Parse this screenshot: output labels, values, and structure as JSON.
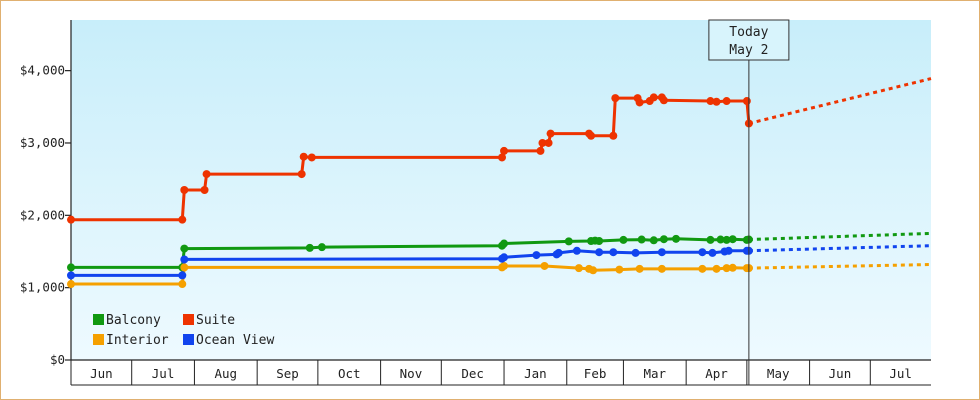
{
  "chart_data": {
    "type": "line",
    "title": "",
    "xlabel": "",
    "ylabel": "",
    "ylim": [
      0,
      4700
    ],
    "xlim": [
      "2025-06-01",
      "2026-07-31"
    ],
    "today_date": "2026-05-02",
    "today_label": [
      "Today",
      "May 2"
    ],
    "y_ticks": [
      {
        "value": 0,
        "label": "$0"
      },
      {
        "value": 1000,
        "label": "$1,000"
      },
      {
        "value": 2000,
        "label": "$2,000"
      },
      {
        "value": 3000,
        "label": "$3,000"
      },
      {
        "value": 4000,
        "label": "$4,000"
      }
    ],
    "months": [
      {
        "label": "Jun",
        "start": "2025-06-01",
        "end": "2025-07-01"
      },
      {
        "label": "Jul",
        "start": "2025-07-01",
        "end": "2025-08-01"
      },
      {
        "label": "Aug",
        "start": "2025-08-01",
        "end": "2025-09-01"
      },
      {
        "label": "Sep",
        "start": "2025-09-01",
        "end": "2025-10-01"
      },
      {
        "label": "Oct",
        "start": "2025-10-01",
        "end": "2025-11-01"
      },
      {
        "label": "Nov",
        "start": "2025-11-01",
        "end": "2025-12-01"
      },
      {
        "label": "Dec",
        "start": "2025-12-01",
        "end": "2026-01-01"
      },
      {
        "label": "Jan",
        "start": "2026-01-01",
        "end": "2026-02-01"
      },
      {
        "label": "Feb",
        "start": "2026-02-01",
        "end": "2026-03-01"
      },
      {
        "label": "Mar",
        "start": "2026-03-01",
        "end": "2026-04-01"
      },
      {
        "label": "Apr",
        "start": "2026-04-01",
        "end": "2026-05-01"
      },
      {
        "label": "May",
        "start": "2026-05-01",
        "end": "2026-06-01"
      },
      {
        "label": "Jun",
        "start": "2026-06-01",
        "end": "2026-07-01"
      },
      {
        "label": "Jul",
        "start": "2026-07-01",
        "end": "2026-07-31"
      }
    ],
    "legend_position": "bottom-left",
    "series": [
      {
        "name": "Balcony",
        "color": "#119911",
        "points": [
          [
            "2025-06-01",
            1280
          ],
          [
            "2025-07-26",
            1280
          ],
          [
            "2025-07-27",
            1540
          ],
          [
            "2025-09-27",
            1550
          ],
          [
            "2025-10-03",
            1560
          ],
          [
            "2025-12-31",
            1580
          ],
          [
            "2026-01-01",
            1610
          ],
          [
            "2026-02-02",
            1640
          ],
          [
            "2026-02-13",
            1645
          ],
          [
            "2026-02-15",
            1650
          ],
          [
            "2026-02-17",
            1645
          ],
          [
            "2026-03-01",
            1660
          ],
          [
            "2026-03-10",
            1665
          ],
          [
            "2026-03-16",
            1655
          ],
          [
            "2026-03-21",
            1670
          ],
          [
            "2026-03-27",
            1675
          ],
          [
            "2026-04-13",
            1660
          ],
          [
            "2026-04-18",
            1665
          ],
          [
            "2026-04-21",
            1660
          ],
          [
            "2026-04-24",
            1670
          ],
          [
            "2026-05-01",
            1660
          ],
          [
            "2026-05-02",
            1665
          ]
        ],
        "forecast": [
          [
            "2026-05-02",
            1665
          ],
          [
            "2026-07-31",
            1750
          ]
        ]
      },
      {
        "name": "Suite",
        "color": "#ee3300",
        "points": [
          [
            "2025-06-01",
            1940
          ],
          [
            "2025-07-26",
            1940
          ],
          [
            "2025-07-27",
            2350
          ],
          [
            "2025-08-06",
            2350
          ],
          [
            "2025-08-07",
            2570
          ],
          [
            "2025-09-23",
            2570
          ],
          [
            "2025-09-24",
            2810
          ],
          [
            "2025-09-28",
            2800
          ],
          [
            "2025-12-31",
            2800
          ],
          [
            "2026-01-01",
            2890
          ],
          [
            "2026-01-19",
            2890
          ],
          [
            "2026-01-20",
            3000
          ],
          [
            "2026-01-23",
            3000
          ],
          [
            "2026-01-24",
            3130
          ],
          [
            "2026-02-12",
            3130
          ],
          [
            "2026-02-13",
            3100
          ],
          [
            "2026-02-24",
            3100
          ],
          [
            "2026-02-25",
            3620
          ],
          [
            "2026-03-08",
            3620
          ],
          [
            "2026-03-09",
            3560
          ],
          [
            "2026-03-14",
            3580
          ],
          [
            "2026-03-16",
            3630
          ],
          [
            "2026-03-20",
            3630
          ],
          [
            "2026-03-21",
            3590
          ],
          [
            "2026-04-13",
            3580
          ],
          [
            "2026-04-16",
            3570
          ],
          [
            "2026-04-21",
            3580
          ],
          [
            "2026-05-01",
            3580
          ],
          [
            "2026-05-02",
            3270
          ]
        ],
        "forecast": [
          [
            "2026-05-02",
            3270
          ],
          [
            "2026-07-31",
            3890
          ]
        ]
      },
      {
        "name": "Interior",
        "color": "#f5a000",
        "points": [
          [
            "2025-06-01",
            1050
          ],
          [
            "2025-07-26",
            1050
          ],
          [
            "2025-07-27",
            1280
          ],
          [
            "2025-12-31",
            1280
          ],
          [
            "2026-01-01",
            1300
          ],
          [
            "2026-01-21",
            1300
          ],
          [
            "2026-02-07",
            1270
          ],
          [
            "2026-02-12",
            1260
          ],
          [
            "2026-02-14",
            1240
          ],
          [
            "2026-02-27",
            1250
          ],
          [
            "2026-03-09",
            1260
          ],
          [
            "2026-03-20",
            1260
          ],
          [
            "2026-04-09",
            1260
          ],
          [
            "2026-04-16",
            1260
          ],
          [
            "2026-04-21",
            1270
          ],
          [
            "2026-04-24",
            1275
          ],
          [
            "2026-05-01",
            1270
          ],
          [
            "2026-05-02",
            1270
          ]
        ],
        "forecast": [
          [
            "2026-05-02",
            1270
          ],
          [
            "2026-07-31",
            1320
          ]
        ]
      },
      {
        "name": "Ocean View",
        "color": "#1144ee",
        "points": [
          [
            "2025-06-01",
            1170
          ],
          [
            "2025-07-26",
            1170
          ],
          [
            "2025-07-27",
            1390
          ],
          [
            "2025-12-31",
            1400
          ],
          [
            "2026-01-01",
            1420
          ],
          [
            "2026-01-17",
            1450
          ],
          [
            "2026-01-27",
            1460
          ],
          [
            "2026-01-28",
            1480
          ],
          [
            "2026-02-06",
            1510
          ],
          [
            "2026-02-17",
            1490
          ],
          [
            "2026-02-24",
            1490
          ],
          [
            "2026-03-07",
            1480
          ],
          [
            "2026-03-20",
            1490
          ],
          [
            "2026-04-09",
            1490
          ],
          [
            "2026-04-14",
            1480
          ],
          [
            "2026-04-20",
            1500
          ],
          [
            "2026-04-22",
            1510
          ],
          [
            "2026-05-01",
            1510
          ],
          [
            "2026-05-02",
            1510
          ]
        ],
        "forecast": [
          [
            "2026-05-02",
            1510
          ],
          [
            "2026-07-31",
            1580
          ]
        ]
      }
    ]
  }
}
